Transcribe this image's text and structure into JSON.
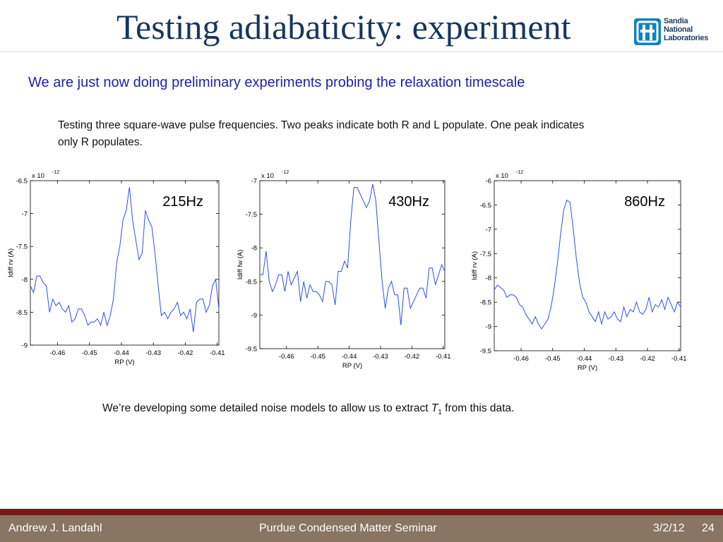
{
  "header": {
    "title": "Testing adiabaticity: experiment",
    "logo_text": [
      "Sandia",
      "National",
      "Laboratories"
    ]
  },
  "subtitle": "We are just now doing preliminary experiments probing the relaxation timescale",
  "description_line1": "Testing three square-wave pulse frequencies.  Two peaks indicate both R and L populate.  One peak indicates",
  "description_line2": "only R populates.",
  "note": {
    "before": "We’re developing some detailed noise models to allow us to extract ",
    "symbol": "T",
    "subscript": "1",
    "after": " from this data."
  },
  "footer": {
    "author": "Andrew J. Landahl",
    "event": "Purdue Condensed Matter Seminar",
    "date": "3/2/12",
    "page": "24"
  },
  "colors": {
    "line": "#2f4ff0",
    "title": "#17365d",
    "subtitle": "#1f22a8",
    "footer_bg": "#8a7462",
    "footer_line": "#7a1818"
  },
  "chart_data": [
    {
      "type": "line",
      "label": "215Hz",
      "xlabel": "RP (V)",
      "ylabel": "Idiff rv (A)",
      "exponent": "x 10",
      "exponent_power": "-12",
      "xlim": [
        -0.4685,
        -0.4095
      ],
      "ylim": [
        -9,
        -6.5
      ],
      "xticks": [
        -0.46,
        -0.45,
        -0.44,
        -0.43,
        -0.42,
        -0.41
      ],
      "xtick_labels": [
        "-0.46",
        "-0.45",
        "-0.44",
        "-0.43",
        "-0.42",
        "-0.41"
      ],
      "yticks": [
        -6.5,
        -7,
        -7.5,
        -8,
        -8.5,
        -9
      ],
      "ytick_labels": [
        "-6.5",
        "-7",
        "-7.5",
        "-8",
        "-8.5",
        "-9"
      ],
      "x": [
        -0.4685,
        -0.4675,
        -0.4665,
        -0.4655,
        -0.4645,
        -0.4635,
        -0.4625,
        -0.4615,
        -0.4605,
        -0.4595,
        -0.4585,
        -0.4575,
        -0.4565,
        -0.4555,
        -0.4545,
        -0.4535,
        -0.4525,
        -0.4515,
        -0.4505,
        -0.4495,
        -0.4485,
        -0.4475,
        -0.4465,
        -0.4455,
        -0.4445,
        -0.4435,
        -0.4425,
        -0.4415,
        -0.4405,
        -0.4395,
        -0.4385,
        -0.4375,
        -0.4365,
        -0.4355,
        -0.4345,
        -0.4335,
        -0.4325,
        -0.4315,
        -0.4305,
        -0.4295,
        -0.4285,
        -0.4275,
        -0.4265,
        -0.4255,
        -0.4245,
        -0.4235,
        -0.4225,
        -0.4215,
        -0.4205,
        -0.4195,
        -0.4185,
        -0.4175,
        -0.4165,
        -0.4155,
        -0.4145,
        -0.4135,
        -0.4125,
        -0.4115,
        -0.4105,
        -0.4095
      ],
      "y": [
        -8.1,
        -8.2,
        -7.95,
        -7.95,
        -8.05,
        -8.1,
        -8.5,
        -8.3,
        -8.4,
        -8.35,
        -8.45,
        -8.5,
        -8.4,
        -8.65,
        -8.6,
        -8.45,
        -8.45,
        -8.55,
        -8.7,
        -8.65,
        -8.65,
        -8.6,
        -8.7,
        -8.5,
        -8.7,
        -8.55,
        -8.3,
        -7.75,
        -7.5,
        -7.1,
        -6.95,
        -6.6,
        -7.1,
        -7.4,
        -7.7,
        -7.6,
        -6.95,
        -7.1,
        -7.2,
        -7.6,
        -8.1,
        -8.55,
        -8.5,
        -8.6,
        -8.5,
        -8.45,
        -8.35,
        -8.55,
        -8.5,
        -8.6,
        -8.45,
        -8.8,
        -8.35,
        -8.3,
        -8.3,
        -8.5,
        -8.4,
        -8.1,
        -8.0,
        -8.45
      ]
    },
    {
      "type": "line",
      "label": "430Hz",
      "xlabel": "RP (V)",
      "ylabel": "Idiff fw (A)",
      "exponent": "x 10",
      "exponent_power": "-12",
      "xlim": [
        -0.4685,
        -0.4095
      ],
      "ylim": [
        -9.5,
        -7
      ],
      "xticks": [
        -0.46,
        -0.45,
        -0.44,
        -0.43,
        -0.42,
        -0.41
      ],
      "xtick_labels": [
        "-0.46",
        "-0.45",
        "-0.44",
        "-0.43",
        "-0.42",
        "-0.41"
      ],
      "yticks": [
        -7,
        -7.5,
        -8,
        -8.5,
        -9,
        -9.5
      ],
      "ytick_labels": [
        "-7",
        "-7.5",
        "-8",
        "-8.5",
        "-9",
        "-9.5"
      ],
      "x": [
        -0.4685,
        -0.4675,
        -0.4665,
        -0.4655,
        -0.4645,
        -0.4635,
        -0.4625,
        -0.4615,
        -0.4605,
        -0.4595,
        -0.4585,
        -0.4575,
        -0.4565,
        -0.4555,
        -0.4545,
        -0.4535,
        -0.4525,
        -0.4515,
        -0.4505,
        -0.4495,
        -0.4485,
        -0.4475,
        -0.4465,
        -0.4455,
        -0.4445,
        -0.4435,
        -0.4425,
        -0.4415,
        -0.4405,
        -0.4395,
        -0.4385,
        -0.4375,
        -0.4365,
        -0.4355,
        -0.4345,
        -0.4335,
        -0.4325,
        -0.4315,
        -0.4305,
        -0.4295,
        -0.4285,
        -0.4275,
        -0.4265,
        -0.4255,
        -0.4245,
        -0.4235,
        -0.4225,
        -0.4215,
        -0.4205,
        -0.4195,
        -0.4185,
        -0.4175,
        -0.4165,
        -0.4155,
        -0.4145,
        -0.4135,
        -0.4125,
        -0.4115,
        -0.4105,
        -0.4095
      ],
      "y": [
        -8.4,
        -8.4,
        -8.05,
        -8.5,
        -8.65,
        -8.55,
        -8.4,
        -8.4,
        -8.65,
        -8.35,
        -8.55,
        -8.45,
        -8.35,
        -8.8,
        -8.5,
        -8.75,
        -8.55,
        -8.65,
        -8.65,
        -8.7,
        -8.8,
        -8.5,
        -8.5,
        -8.55,
        -8.85,
        -8.35,
        -8.35,
        -8.2,
        -8.3,
        -7.6,
        -7.1,
        -7.1,
        -7.2,
        -7.3,
        -7.4,
        -7.3,
        -7.05,
        -7.3,
        -7.9,
        -8.5,
        -8.9,
        -8.6,
        -8.5,
        -8.7,
        -8.7,
        -9.15,
        -8.6,
        -8.6,
        -8.9,
        -8.8,
        -8.7,
        -8.6,
        -8.6,
        -8.75,
        -8.3,
        -8.3,
        -8.55,
        -8.4,
        -8.25,
        -8.35
      ]
    },
    {
      "type": "line",
      "label": "860Hz",
      "xlabel": "RP (V)",
      "ylabel": "Idiff rv (A)",
      "exponent": "x 10",
      "exponent_power": "-12",
      "xlim": [
        -0.4685,
        -0.4095
      ],
      "ylim": [
        -9.5,
        -6
      ],
      "xticks": [
        -0.46,
        -0.45,
        -0.44,
        -0.43,
        -0.42,
        -0.41
      ],
      "xtick_labels": [
        "-0.46",
        "-0.45",
        "-0.44",
        "-0.43",
        "-0.42",
        "-0.41"
      ],
      "yticks": [
        -6,
        -6.5,
        -7,
        -7.5,
        -8,
        -8.5,
        -9,
        -9.5
      ],
      "ytick_labels": [
        "-6",
        "-6.5",
        "-7",
        "-7.5",
        "-8",
        "-8.5",
        "-9",
        "-9.5"
      ],
      "x": [
        -0.4685,
        -0.4675,
        -0.4665,
        -0.4655,
        -0.4645,
        -0.4635,
        -0.4625,
        -0.4615,
        -0.4605,
        -0.4595,
        -0.4585,
        -0.4575,
        -0.4565,
        -0.4555,
        -0.4545,
        -0.4535,
        -0.4525,
        -0.4515,
        -0.4505,
        -0.4495,
        -0.4485,
        -0.4475,
        -0.4465,
        -0.4455,
        -0.4445,
        -0.4435,
        -0.4425,
        -0.4415,
        -0.4405,
        -0.4395,
        -0.4385,
        -0.4375,
        -0.4365,
        -0.4355,
        -0.4345,
        -0.4335,
        -0.4325,
        -0.4315,
        -0.4305,
        -0.4295,
        -0.4285,
        -0.4275,
        -0.4265,
        -0.4255,
        -0.4245,
        -0.4235,
        -0.4225,
        -0.4215,
        -0.4205,
        -0.4195,
        -0.4185,
        -0.4175,
        -0.4165,
        -0.4155,
        -0.4145,
        -0.4135,
        -0.4125,
        -0.4115,
        -0.4105,
        -0.4095
      ],
      "y": [
        -8.25,
        -8.15,
        -8.2,
        -8.25,
        -8.4,
        -8.35,
        -8.35,
        -8.4,
        -8.55,
        -8.6,
        -8.75,
        -8.85,
        -8.95,
        -8.8,
        -8.95,
        -9.05,
        -8.95,
        -8.85,
        -8.6,
        -8.2,
        -7.7,
        -7.1,
        -6.6,
        -6.4,
        -6.45,
        -7.0,
        -7.6,
        -8.1,
        -8.4,
        -8.5,
        -8.7,
        -8.8,
        -8.9,
        -8.7,
        -8.95,
        -8.7,
        -8.85,
        -8.8,
        -8.7,
        -8.85,
        -8.9,
        -8.6,
        -8.8,
        -8.65,
        -8.7,
        -8.5,
        -8.7,
        -8.75,
        -8.65,
        -8.4,
        -8.7,
        -8.55,
        -8.6,
        -8.45,
        -8.65,
        -8.4,
        -8.55,
        -8.7,
        -8.5,
        -8.6
      ]
    }
  ]
}
